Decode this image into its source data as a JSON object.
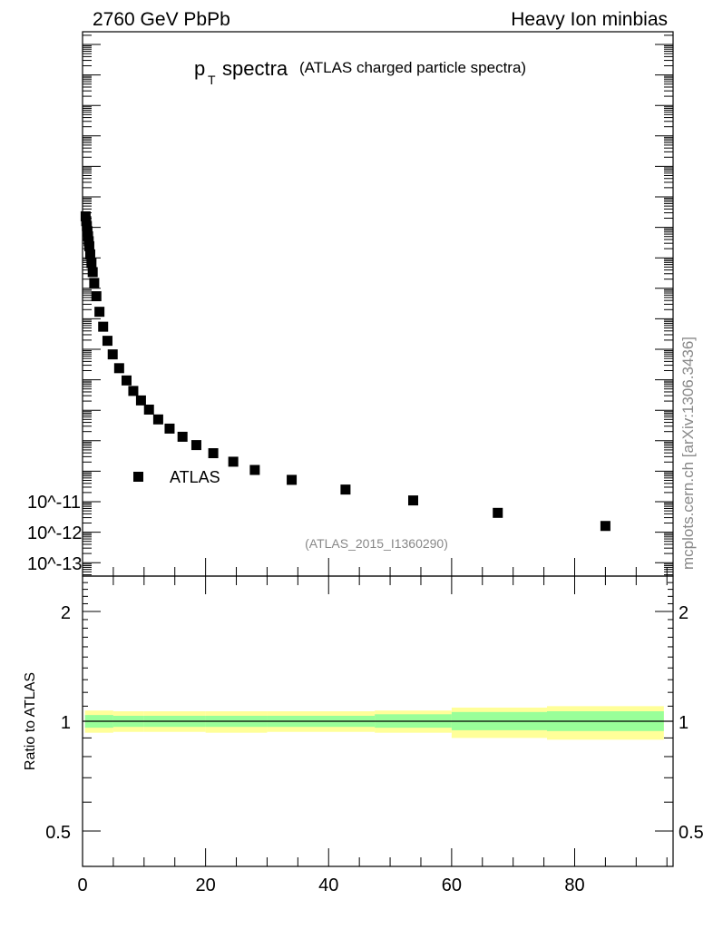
{
  "header": {
    "left": "2760 GeV PbPb",
    "right": "Heavy Ion minbias"
  },
  "watermark": "mcplots.cern.ch [arXiv:1306.3436]",
  "colors": {
    "data_marker": "#000000",
    "band_outer": "#ffff99",
    "band_inner": "#99ff99",
    "ref_line": "#000000"
  },
  "chart_data": [
    {
      "type": "scatter",
      "title_main": "p",
      "title_sub": "T",
      "title_word": "spectra",
      "title_extra": "(ATLAS charged particle spectra)",
      "analysis_id": "(ATLAS_2015_I1360290)",
      "legend": {
        "entries": [
          "ATLAS"
        ],
        "placement": "bottom-left"
      },
      "y_scale": "log",
      "y_tick_labels": [
        "10^-11",
        "10^-12",
        "10^-13"
      ],
      "xlim": [
        0,
        96
      ],
      "series": [
        {
          "name": "ATLAS",
          "marker": "square",
          "x": [
            0.5,
            0.6,
            0.7,
            0.8,
            0.9,
            1.0,
            1.1,
            1.25,
            1.45,
            1.65,
            1.9,
            2.25,
            2.75,
            3.35,
            4.05,
            4.9,
            5.95,
            7.15,
            8.25,
            9.5,
            10.8,
            12.3,
            14.15,
            16.25,
            18.5,
            21.25,
            24.5,
            28.0,
            34.0,
            42.75,
            53.75,
            67.5,
            85.0
          ],
          "y": [
            0.023,
            0.016,
            0.011,
            0.0075,
            0.0051,
            0.0035,
            0.0024,
            0.0013,
            0.00067,
            0.00034,
            0.00015,
            5.5e-05,
            1.7e-05,
            5.5e-06,
            1.9e-06,
            6.8e-07,
            2.4e-07,
            9.5e-08,
            4.3e-08,
            2.1e-08,
            1.05e-08,
            5e-09,
            2.5e-09,
            1.35e-09,
            7.2e-10,
            3.9e-10,
            2.05e-10,
            1.1e-10,
            5.2e-11,
            2.5e-11,
            1.1e-11,
            4.3e-12,
            1.6e-12
          ]
        }
      ]
    },
    {
      "type": "area",
      "ylabel": "Ratio to ATLAS",
      "y_scale": "log",
      "ylim": [
        0.4,
        2.5
      ],
      "y_ticks": [
        0.5,
        1,
        2
      ],
      "y_tick_labels": [
        "0.5",
        "1",
        "2"
      ],
      "x_ticks": [
        0,
        20,
        40,
        60,
        80
      ],
      "x_tick_labels": [
        "0",
        "20",
        "40",
        "60",
        "80"
      ],
      "xlim": [
        0,
        96
      ],
      "reference_line": 1,
      "bands": [
        {
          "name": "outer",
          "edges": [
            0.4,
            5,
            10,
            20,
            30,
            47.5,
            60,
            75.5,
            94.5
          ],
          "lower": [
            0.93,
            0.935,
            0.935,
            0.93,
            0.935,
            0.93,
            0.9,
            0.89,
            0.87
          ],
          "upper": [
            1.07,
            1.065,
            1.065,
            1.065,
            1.065,
            1.07,
            1.09,
            1.1,
            1.13
          ]
        },
        {
          "name": "inner",
          "edges": [
            0.4,
            5,
            10,
            20,
            30,
            47.5,
            60,
            75.5,
            94.5
          ],
          "lower": [
            0.96,
            0.965,
            0.965,
            0.965,
            0.965,
            0.96,
            0.945,
            0.94,
            0.93
          ],
          "upper": [
            1.04,
            1.035,
            1.035,
            1.035,
            1.035,
            1.045,
            1.06,
            1.065,
            1.065
          ]
        }
      ]
    }
  ]
}
